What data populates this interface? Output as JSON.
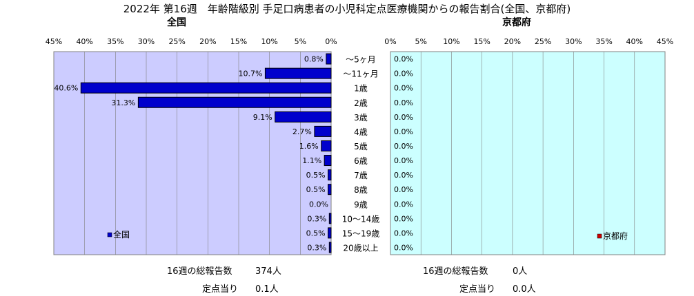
{
  "title": "2022年 第16週　年齢階級別 手足口病患者の小児科定点医療機関からの報告割合(全国、京都府)",
  "panels": {
    "left": {
      "label": "全国"
    },
    "right": {
      "label": "京都府"
    }
  },
  "footer": {
    "left": {
      "total_label": "16週の総報告数",
      "total_value": "374人",
      "per_label": "定点当り",
      "per_value": "0.1人"
    },
    "right": {
      "total_label": "16週の総報告数",
      "total_value": "0人",
      "per_label": "定点当り",
      "per_value": "0.0人"
    }
  },
  "colors": {
    "plot_bg_left": "#ccccff",
    "plot_bg_right": "#ccffff",
    "national_bar": "#0000cc",
    "kyoto_marker": "#cc0000",
    "grid": "#808080"
  },
  "chart_data": [
    {
      "type": "bar",
      "orientation": "horizontal",
      "direction": "right-to-left",
      "xlim": [
        0,
        45
      ],
      "xticks": [
        "45%",
        "40%",
        "35%",
        "30%",
        "25%",
        "20%",
        "15%",
        "10%",
        "5%",
        "0%"
      ],
      "categories": [
        "～5ヶ月",
        "～11ヶ月",
        "1歳",
        "2歳",
        "3歳",
        "4歳",
        "5歳",
        "6歳",
        "7歳",
        "8歳",
        "9歳",
        "10～14歳",
        "15～19歳",
        "20歳以上"
      ],
      "series": [
        {
          "name": "全国",
          "values": [
            0.8,
            10.7,
            40.6,
            31.3,
            9.1,
            2.7,
            1.6,
            1.1,
            0.5,
            0.5,
            0.0,
            0.3,
            0.5,
            0.3
          ],
          "labels": [
            "0.8%",
            "10.7%",
            "40.6%",
            "31.3%",
            "9.1%",
            "2.7%",
            "1.6%",
            "1.1%",
            "0.5%",
            "0.5%",
            "0.0%",
            "0.3%",
            "0.5%",
            "0.3%"
          ]
        }
      ],
      "grid": true,
      "legend": "bottom-left"
    },
    {
      "type": "bar",
      "orientation": "horizontal",
      "direction": "left-to-right",
      "xlim": [
        0,
        45
      ],
      "xticks": [
        "0%",
        "5%",
        "10%",
        "15%",
        "20%",
        "25%",
        "30%",
        "35%",
        "40%",
        "45%"
      ],
      "categories": [
        "～5ヶ月",
        "～11ヶ月",
        "1歳",
        "2歳",
        "3歳",
        "4歳",
        "5歳",
        "6歳",
        "7歳",
        "8歳",
        "9歳",
        "10～14歳",
        "15～19歳",
        "20歳以上"
      ],
      "series": [
        {
          "name": "京都府",
          "values": [
            0.0,
            0.0,
            0.0,
            0.0,
            0.0,
            0.0,
            0.0,
            0.0,
            0.0,
            0.0,
            0.0,
            0.0,
            0.0,
            0.0
          ],
          "labels": [
            "0.0%",
            "0.0%",
            "0.0%",
            "0.0%",
            "0.0%",
            "0.0%",
            "0.0%",
            "0.0%",
            "0.0%",
            "0.0%",
            "0.0%",
            "0.0%",
            "0.0%",
            "0.0%"
          ]
        }
      ],
      "grid": true,
      "legend": "bottom-right"
    }
  ]
}
